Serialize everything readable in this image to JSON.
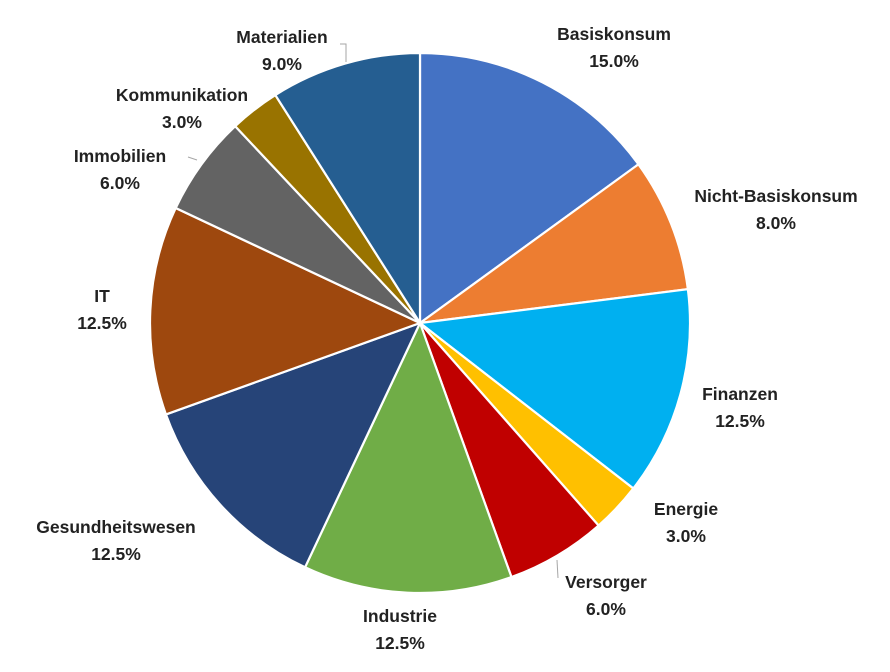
{
  "chart_data": {
    "type": "pie",
    "title": "",
    "start_angle_deg": 0,
    "direction": "clockwise",
    "categories": [
      "Basiskonsum",
      "Nicht-Basiskonsum",
      "Finanzen",
      "Energie",
      "Versorger",
      "Industrie",
      "Gesundheitswesen",
      "IT",
      "Immobilien",
      "Kommunikation",
      "Materialien"
    ],
    "values": [
      15.0,
      8.0,
      12.5,
      3.0,
      6.0,
      12.5,
      12.5,
      12.5,
      6.0,
      3.0,
      9.0
    ],
    "value_labels": [
      "15.0%",
      "8.0%",
      "12.5%",
      "3.0%",
      "6.0%",
      "12.5%",
      "12.5%",
      "12.5%",
      "6.0%",
      "3.0%",
      "9.0%"
    ],
    "colors": [
      "#4472C4",
      "#ED7D31",
      "#00B0F0",
      "#FFC000",
      "#C00000",
      "#70AD47",
      "#264478",
      "#9E480E",
      "#636363",
      "#997300",
      "#255E91"
    ],
    "legend": "none",
    "data_labels": "outside"
  }
}
